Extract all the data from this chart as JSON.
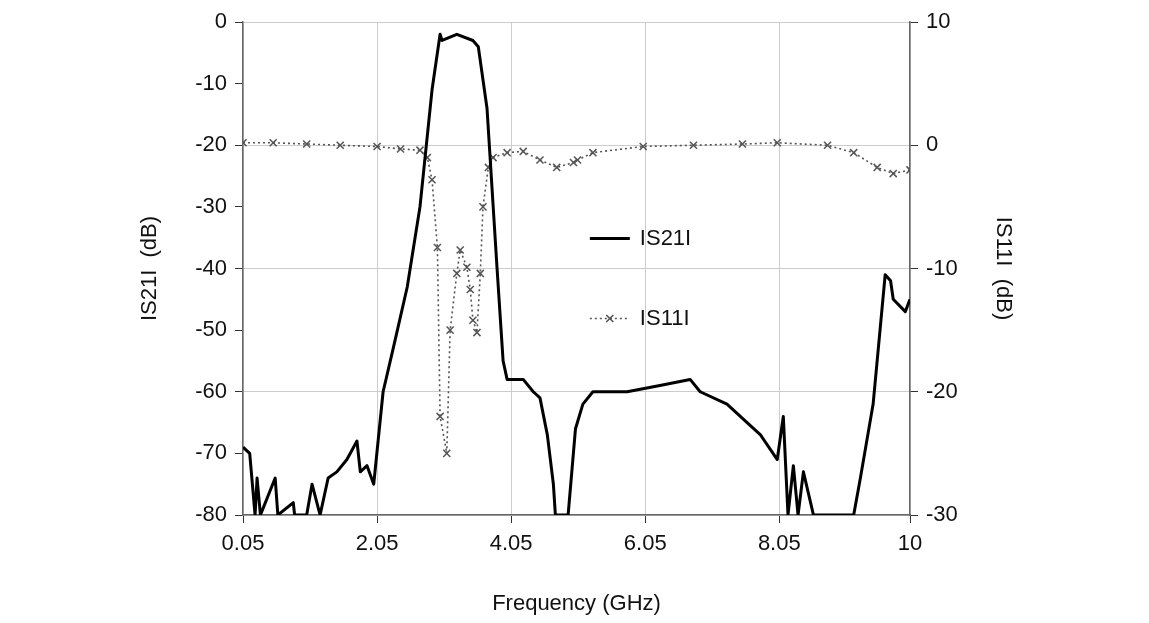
{
  "chart_data": {
    "type": "line",
    "xlabel": "Frequency (GHz)",
    "ylabel": "IS21I  (dB)",
    "y2label": "IS11I  (dB)",
    "xlim": [
      0.05,
      10
    ],
    "xticks": [
      0.05,
      2.05,
      4.05,
      6.05,
      8.05,
      10
    ],
    "ylim": [
      -80,
      0
    ],
    "yticks": [
      -80,
      -70,
      -60,
      -50,
      -40,
      -30,
      -20,
      -10,
      0
    ],
    "y2lim": [
      -30,
      10
    ],
    "y2ticks": [
      -30,
      -20,
      -10,
      0,
      10
    ],
    "grid": true,
    "legend": "center right",
    "series": [
      {
        "name": "IS21I",
        "color": "#000000",
        "marker": "none",
        "line_style": "solid",
        "x": [
          0.05,
          0.15,
          0.23,
          0.26,
          0.31,
          0.53,
          0.57,
          0.8,
          0.82,
          1.0,
          1.08,
          1.2,
          1.32,
          1.45,
          1.6,
          1.75,
          1.8,
          1.9,
          2.0,
          2.14,
          2.29,
          2.5,
          2.69,
          2.87,
          2.99,
          3.02,
          3.24,
          3.48,
          3.56,
          3.69,
          3.84,
          3.93,
          3.99,
          4.23,
          4.38,
          4.48,
          4.59,
          4.68,
          4.71,
          4.86,
          4.9,
          5.01,
          5.12,
          5.27,
          5.78,
          6.27,
          6.72,
          6.87,
          7.27,
          7.57,
          7.77,
          8.02,
          8.11,
          8.18,
          8.26,
          8.33,
          8.41,
          8.56,
          9.16,
          9.26,
          9.45,
          9.63,
          9.71,
          9.75,
          9.93,
          10
        ],
        "values": [
          -69,
          -70,
          -80,
          -74,
          -80,
          -74,
          -80,
          -78,
          -80,
          -80,
          -75,
          -80,
          -74,
          -73,
          -71,
          -68,
          -73,
          -72,
          -75,
          -60,
          -53,
          -43,
          -30,
          -11,
          -2,
          -3,
          -2,
          -3,
          -4,
          -14,
          -40,
          -55,
          -58,
          -58,
          -60,
          -61,
          -67,
          -75,
          -80,
          -80,
          -80,
          -66,
          -62,
          -60,
          -60,
          -59,
          -58,
          -60,
          -62,
          -65,
          -67,
          -71,
          -64,
          -80,
          -72,
          -80,
          -73,
          -80,
          -80,
          -74,
          -62,
          -41,
          -42,
          -45,
          -47,
          -45
        ]
      },
      {
        "name": "IS11I",
        "color": "#555555",
        "axis": "y2",
        "marker": "cross",
        "line_style": "dotted",
        "x": [
          0.05,
          0.5,
          1.0,
          1.5,
          2.05,
          2.4,
          2.69,
          2.8,
          2.87,
          2.95,
          2.99,
          3.09,
          3.14,
          3.24,
          3.29,
          3.39,
          3.44,
          3.48,
          3.54,
          3.59,
          3.63,
          3.71,
          3.78,
          3.99,
          4.23,
          4.48,
          4.73,
          4.98,
          5.04,
          5.27,
          6.02,
          6.77,
          7.5,
          8.02,
          8.77,
          9.16,
          9.51,
          9.75,
          10
        ],
        "values": [
          0.2,
          0.2,
          0.1,
          0,
          -0.1,
          -0.3,
          -0.4,
          -1,
          -2.8,
          -8.3,
          -22,
          -25,
          -15,
          -10.4,
          -8.5,
          -9.9,
          -11.7,
          -14.2,
          -15.2,
          -10.4,
          -5,
          -1.8,
          -1,
          -0.6,
          -0.5,
          -1.2,
          -1.8,
          -1.4,
          -1.2,
          -0.6,
          -0.1,
          0,
          0.1,
          0.2,
          0,
          -0.6,
          -1.8,
          -2.3,
          -2
        ]
      }
    ]
  }
}
